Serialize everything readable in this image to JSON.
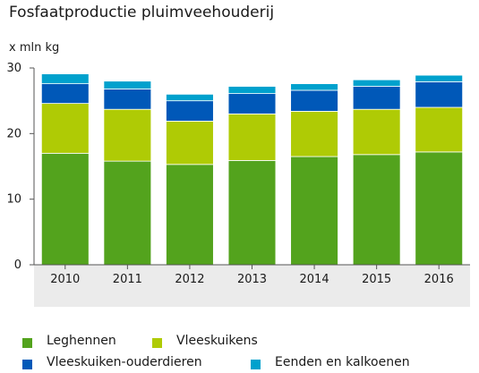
{
  "chart_data": {
    "type": "bar",
    "stacked": true,
    "title": "Fosfaatproductie pluimveehouderij",
    "ylabel": "x mln kg",
    "xlabel": "",
    "categories": [
      "2010",
      "2011",
      "2012",
      "2013",
      "2014",
      "2015",
      "2016"
    ],
    "ylim": [
      0,
      30
    ],
    "yticks": [
      0,
      10,
      20,
      30
    ],
    "grid": false,
    "legend_position": "bottom",
    "series": [
      {
        "name": "Leghennen",
        "color": "#53a31d",
        "values": [
          17.0,
          15.8,
          15.3,
          15.9,
          16.5,
          16.8,
          17.2
        ]
      },
      {
        "name": "Vleeskuikens",
        "color": "#afcb05",
        "values": [
          7.6,
          7.9,
          6.6,
          7.1,
          6.9,
          6.9,
          6.8
        ]
      },
      {
        "name": "Vleeskuiken-ouderdieren",
        "color": "#0058b8",
        "values": [
          3.0,
          3.1,
          3.1,
          3.1,
          3.2,
          3.5,
          3.9
        ]
      },
      {
        "name": "Eenden en kalkoenen",
        "color": "#00a1cd",
        "values": [
          1.5,
          1.2,
          1.0,
          1.1,
          1.0,
          1.0,
          1.0
        ]
      }
    ]
  }
}
